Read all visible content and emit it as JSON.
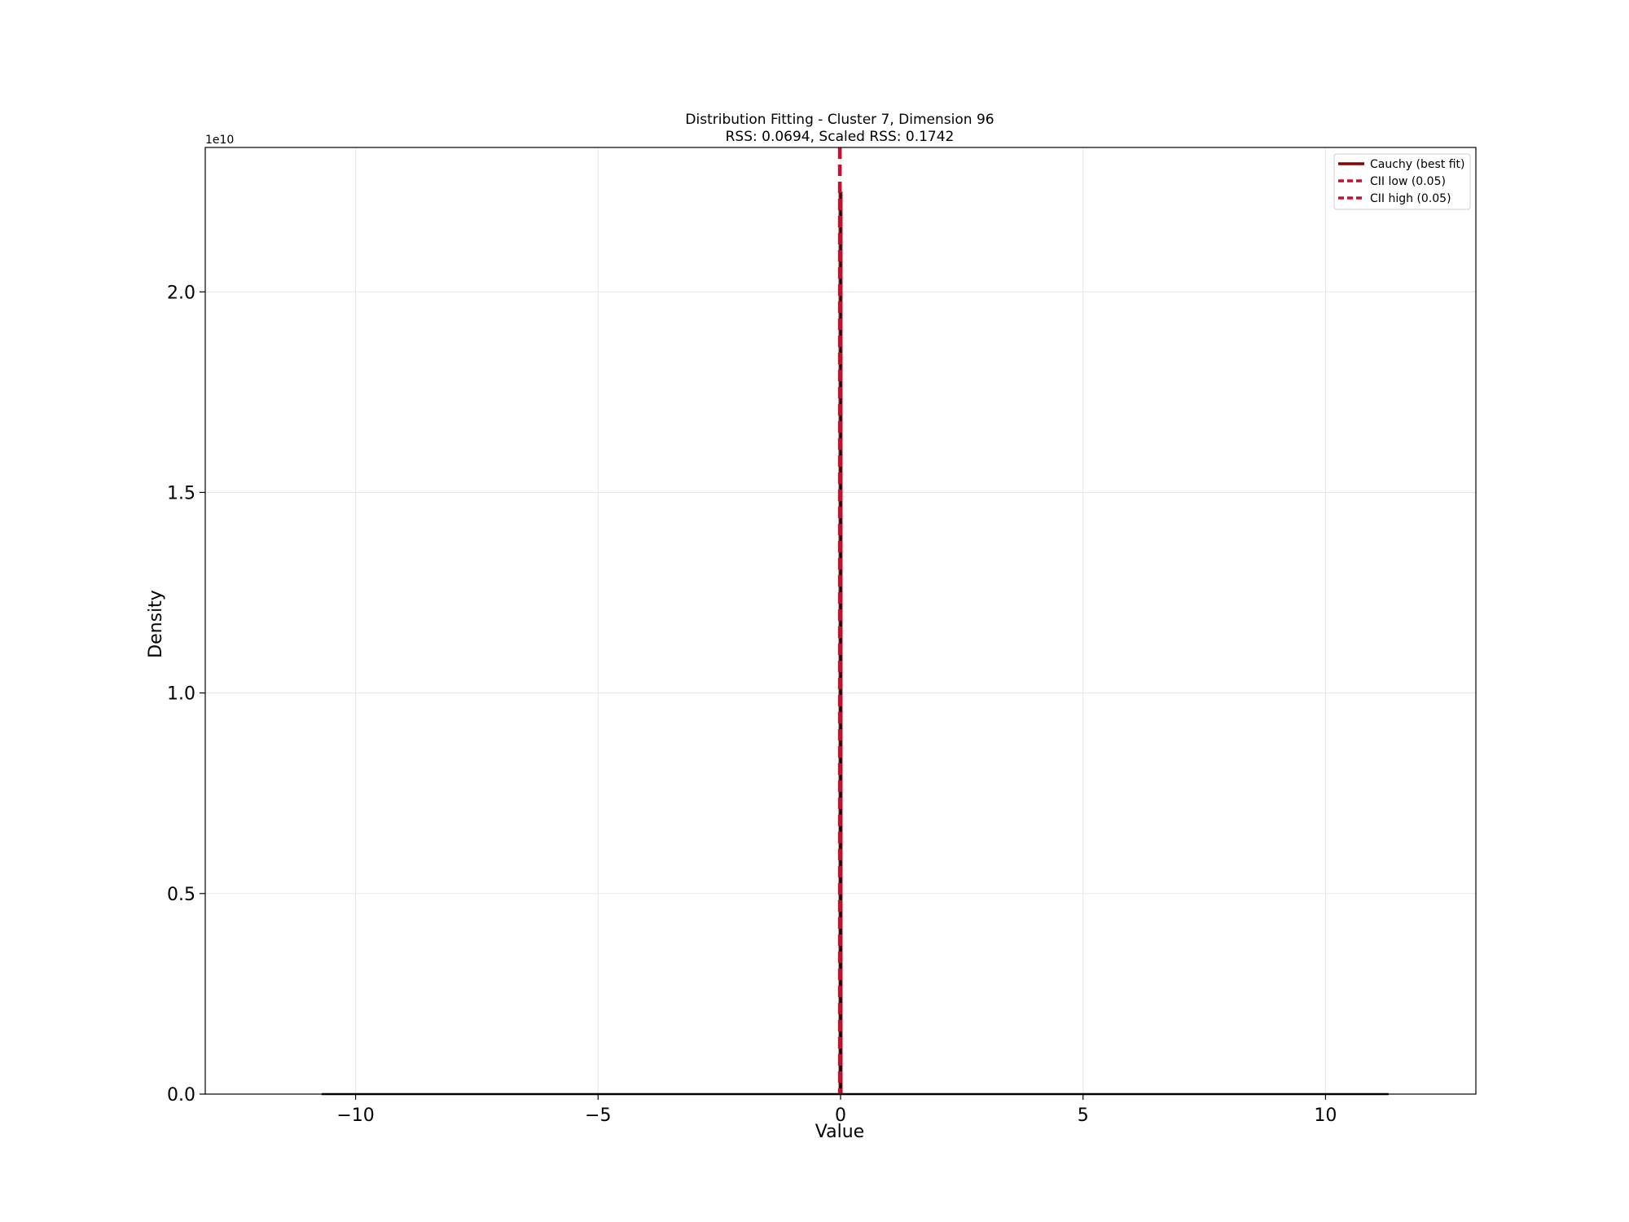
{
  "chart_data": {
    "type": "line",
    "title": "Distribution Fitting - Cluster 7, Dimension 96",
    "subtitle": "RSS: 0.0694, Scaled RSS: 0.1742",
    "xlabel": "Value",
    "ylabel": "Density",
    "xlim": [
      -13.1,
      13.1
    ],
    "ylim": [
      0,
      23600000000.0
    ],
    "y_offset_label": "1e10",
    "y_tick_scale": 10000000000.0,
    "x_ticks": [
      -10,
      -5,
      0,
      5,
      10
    ],
    "x_tick_labels": [
      "−10",
      "−5",
      "0",
      "5",
      "10"
    ],
    "y_ticks": [
      0,
      5000000000.0,
      10000000000.0,
      15000000000.0,
      20000000000.0
    ],
    "y_tick_labels": [
      "0.0",
      "0.5",
      "1.0",
      "1.5",
      "2.0"
    ],
    "grid": true,
    "legend_position": "top-right",
    "series": [
      {
        "name": "Cauchy (best fit)",
        "kind": "line",
        "color": "#8b0000",
        "x": [
          -10.7,
          -0.05,
          -0.005,
          0,
          0.005,
          0.05,
          11.3
        ],
        "y": [
          0,
          0,
          0,
          22500000000.0,
          0,
          0,
          0
        ]
      },
      {
        "name": "CII low (0.05)",
        "kind": "vline",
        "color": "#c8102e",
        "x": -0.02
      },
      {
        "name": "CII high (0.05)",
        "kind": "vline",
        "color": "#c8102e",
        "x": -0.01
      }
    ]
  }
}
